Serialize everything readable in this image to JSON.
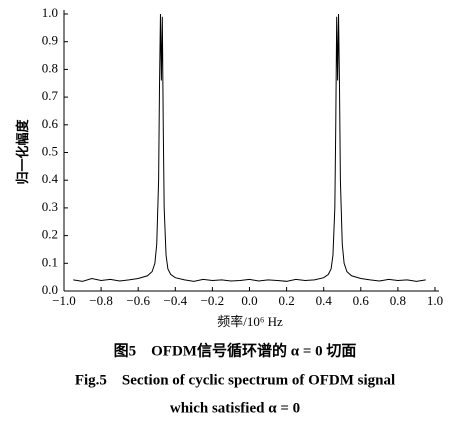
{
  "chart_data": {
    "type": "line",
    "xlabel": "频率/10⁶ Hz",
    "ylabel": "归一化幅度",
    "captions": [
      "图5　OFDM信号循环谱的 α = 0 切面",
      "Fig.5　Section of cyclic spectrum of OFDM signal",
      "which satisfied α = 0"
    ],
    "x": [
      -0.95,
      -0.9,
      -0.85,
      -0.8,
      -0.75,
      -0.7,
      -0.65,
      -0.6,
      -0.575,
      -0.55,
      -0.525,
      -0.51,
      -0.5,
      -0.49,
      -0.485,
      -0.48,
      -0.475,
      -0.47,
      -0.465,
      -0.46,
      -0.45,
      -0.44,
      -0.425,
      -0.4,
      -0.35,
      -0.3,
      -0.25,
      -0.2,
      -0.15,
      -0.1,
      -0.05,
      0,
      0.05,
      0.1,
      0.15,
      0.2,
      0.25,
      0.3,
      0.35,
      0.4,
      0.425,
      0.44,
      0.45,
      0.46,
      0.465,
      0.47,
      0.475,
      0.48,
      0.485,
      0.49,
      0.5,
      0.51,
      0.525,
      0.55,
      0.575,
      0.6,
      0.65,
      0.7,
      0.75,
      0.8,
      0.85,
      0.9,
      0.95
    ],
    "series": [
      {
        "color": "#000000",
        "values": [
          0.04,
          0.035,
          0.045,
          0.038,
          0.042,
          0.036,
          0.04,
          0.045,
          0.05,
          0.055,
          0.07,
          0.1,
          0.17,
          0.4,
          0.75,
          1.0,
          0.76,
          0.99,
          0.6,
          0.3,
          0.13,
          0.08,
          0.06,
          0.048,
          0.04,
          0.035,
          0.042,
          0.038,
          0.04,
          0.036,
          0.038,
          0.042,
          0.036,
          0.04,
          0.038,
          0.035,
          0.042,
          0.038,
          0.04,
          0.048,
          0.06,
          0.08,
          0.13,
          0.3,
          0.6,
          0.99,
          0.76,
          1.0,
          0.75,
          0.4,
          0.17,
          0.1,
          0.07,
          0.055,
          0.05,
          0.045,
          0.04,
          0.036,
          0.042,
          0.038,
          0.04,
          0.035,
          0.04
        ]
      }
    ],
    "xlim": [
      -1.0,
      1.0
    ],
    "xticks": [
      {
        "value": -1.0,
        "label": "−1.0"
      },
      {
        "value": -0.8,
        "label": "−0.8"
      },
      {
        "value": -0.6,
        "label": "−0.6"
      },
      {
        "value": -0.4,
        "label": "−0.4"
      },
      {
        "value": -0.2,
        "label": "−0.2"
      },
      {
        "value": 0,
        "label": "0.0"
      },
      0.2,
      0.4,
      0.6,
      0.8,
      {
        "value": 1.0,
        "label": "1.0"
      }
    ],
    "ylim": [
      0,
      1.0
    ],
    "yticks": [
      {
        "value": 0,
        "label": "0.0"
      },
      0.1,
      0.2,
      0.3,
      0.4,
      0.5,
      0.6,
      0.7,
      0.8,
      0.9,
      {
        "value": 1.0,
        "label": "1.0"
      }
    ],
    "grid": false
  }
}
